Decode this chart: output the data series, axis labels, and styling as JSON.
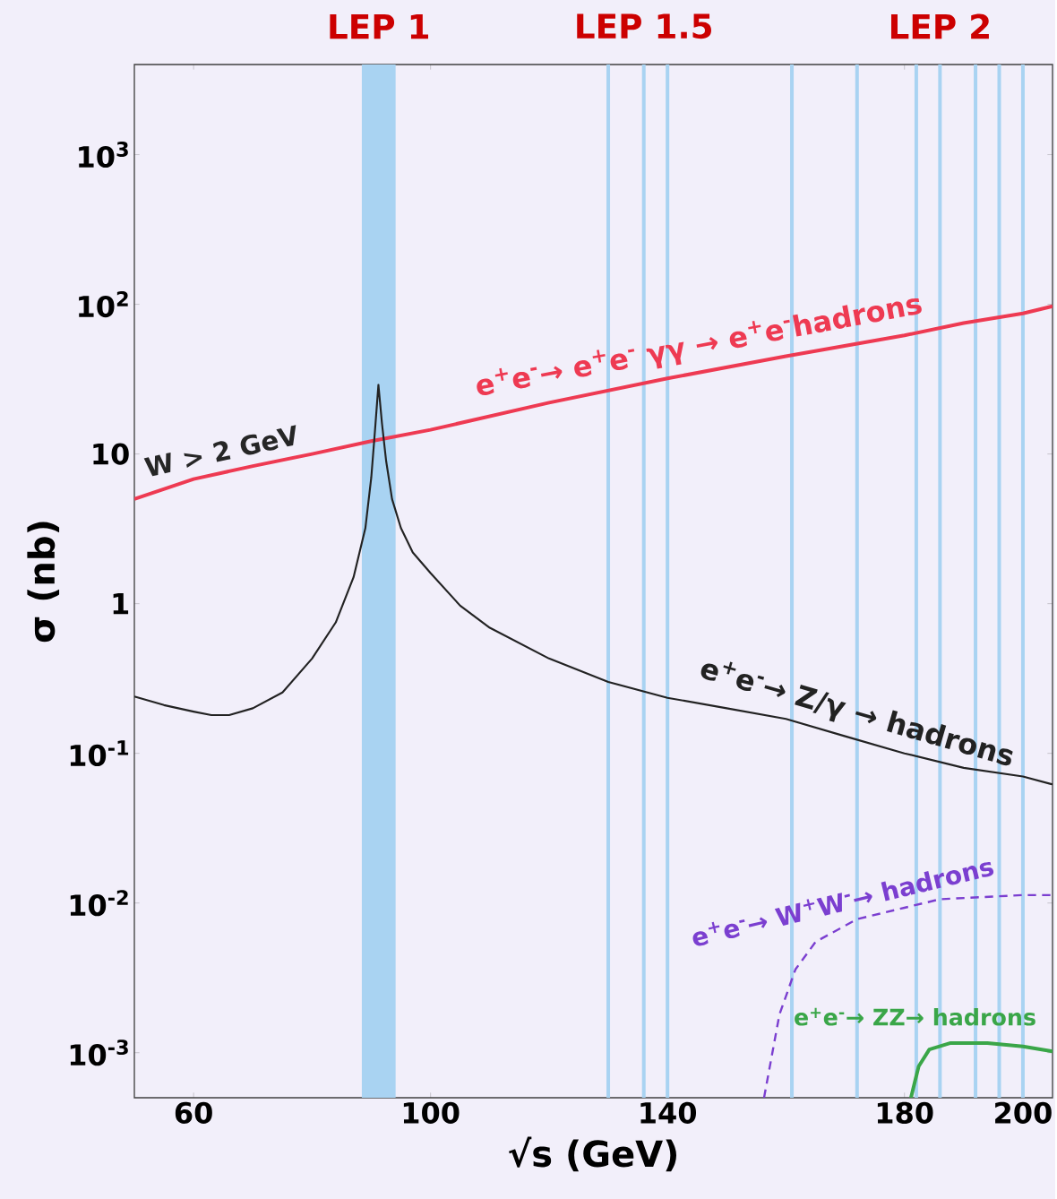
{
  "chart_data": {
    "type": "line",
    "xlabel": "√s   (GeV)",
    "ylabel": "σ (nb)",
    "log": "y",
    "xlim": [
      50,
      205
    ],
    "ylim": [
      0.0005,
      4000
    ],
    "xticks": [
      60,
      100,
      140,
      180,
      200
    ],
    "yticks": [
      {
        "value": 0.001,
        "label": "10$^{-3}$"
      },
      {
        "value": 0.01,
        "label": "10$^{-2}$"
      },
      {
        "value": 0.1,
        "label": "10$^{-1}$"
      },
      {
        "value": 1,
        "label": "1"
      },
      {
        "value": 10,
        "label": "10"
      },
      {
        "value": 100,
        "label": "10$^{2}$"
      },
      {
        "value": 1000,
        "label": "10$^{3}$"
      }
    ],
    "grid": false,
    "legend": false,
    "marker": "none",
    "series": [
      {
        "name": "e$^{+}$e$^{-}$→ e$^{+}$e$^{-}$ γγ → e$^{+}$e$^{-}$hadrons",
        "color": "#ee3a52",
        "x": [
          50,
          60,
          70,
          80,
          90,
          100,
          120,
          140,
          160,
          180,
          190,
          200,
          205
        ],
        "values": [
          5,
          6.8,
          8.3,
          10,
          12.2,
          14.5,
          22,
          32,
          45,
          62,
          75,
          87,
          97
        ]
      },
      {
        "name": "e$^{+}$e$^{-}$→ Z/γ →  hadrons",
        "color": "#222222",
        "x": [
          50,
          55,
          60,
          63,
          66,
          70,
          75,
          80,
          84,
          87,
          89,
          90,
          90.6,
          91.2,
          91.8,
          92.5,
          93.5,
          95,
          97,
          100,
          105,
          110,
          120,
          130,
          140,
          150,
          160,
          170,
          180,
          190,
          200,
          205
        ],
        "values": [
          0.24,
          0.21,
          0.19,
          0.18,
          0.18,
          0.2,
          0.255,
          0.43,
          0.75,
          1.5,
          3.2,
          7,
          14,
          29,
          16,
          9,
          5,
          3.2,
          2.2,
          1.6,
          0.97,
          0.69,
          0.43,
          0.3,
          0.235,
          0.2,
          0.17,
          0.13,
          0.1,
          0.08,
          0.07,
          0.062
        ]
      },
      {
        "name": "e$^{+}$e$^{-}$→ W$^{+}$W$^{-}$→ hadrons",
        "color": "#7b3fd0",
        "line_style": "dashed",
        "x": [
          156.3,
          158.9,
          161.6,
          165,
          172,
          180,
          186,
          200,
          205
        ],
        "values": [
          0.0005,
          0.0018,
          0.0036,
          0.0055,
          0.0078,
          0.0093,
          0.0106,
          0.0113,
          0.0113
        ]
      },
      {
        "name": "e$^{+}$e$^{-}$→ ZZ→ hadrons",
        "color": "#3aa648",
        "x": [
          181.1,
          182.4,
          184.2,
          187.8,
          194,
          200,
          205
        ],
        "values": [
          0.0005,
          0.00081,
          0.00105,
          0.00116,
          0.00116,
          0.0011,
          0.00102
        ]
      }
    ],
    "bands": [
      {
        "axis": "x",
        "from": 88.4,
        "to": 94.1,
        "label": "LEP 1",
        "color": "#a9d3f2"
      }
    ],
    "ref_lines": [
      {
        "axis": "x",
        "value": 130,
        "color": "#a9d3f2"
      },
      {
        "axis": "x",
        "value": 136,
        "label": "LEP 1.5",
        "color": "#a9d3f2"
      },
      {
        "axis": "x",
        "value": 140,
        "color": "#a9d3f2"
      },
      {
        "axis": "x",
        "value": 161,
        "color": "#a9d3f2"
      },
      {
        "axis": "x",
        "value": 172,
        "color": "#a9d3f2"
      },
      {
        "axis": "x",
        "value": 182,
        "color": "#a9d3f2"
      },
      {
        "axis": "x",
        "value": 186,
        "label": "LEP 2",
        "color": "#a9d3f2"
      },
      {
        "axis": "x",
        "value": 192,
        "color": "#a9d3f2"
      },
      {
        "axis": "x",
        "value": 196,
        "color": "#a9d3f2"
      },
      {
        "axis": "x",
        "value": 200,
        "color": "#a9d3f2"
      }
    ],
    "annotations": [
      "W > 2 GeV"
    ]
  }
}
